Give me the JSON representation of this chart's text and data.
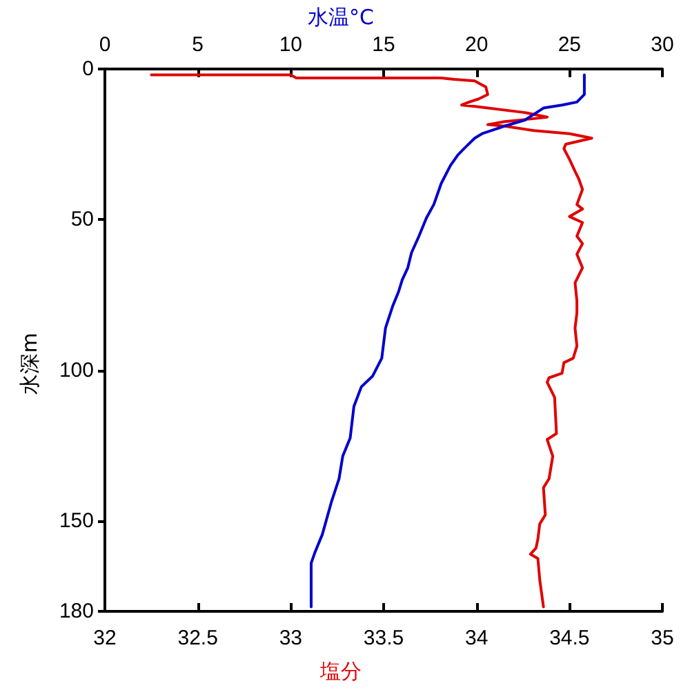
{
  "chart_data": {
    "type": "line",
    "xlabel": "塩分",
    "x2label": "水温°C",
    "ylabel": "水深m",
    "xlim": [
      32,
      35
    ],
    "xticks": [
      32,
      32.5,
      33,
      33.5,
      34,
      34.5,
      35
    ],
    "x2lim": [
      0,
      30
    ],
    "x2ticks": [
      0,
      5,
      10,
      15,
      20,
      25,
      30
    ],
    "ylim": [
      180,
      0
    ],
    "yticks": [
      0,
      50,
      100,
      150,
      180
    ],
    "grid": false,
    "marker": "none",
    "line_style": "solid",
    "series": [
      {
        "color": "#e00000",
        "x": [
          32.25,
          33.0,
          33.03,
          33.81,
          33.88,
          33.99,
          34.02,
          34.05,
          34.06,
          34.01,
          33.96,
          33.92,
          34.0,
          34.26,
          34.38,
          34.31,
          34.15,
          34.06,
          34.15,
          34.31,
          34.5,
          34.62,
          34.48,
          34.47,
          34.5,
          34.53,
          34.55,
          34.57,
          34.54,
          34.57,
          34.5,
          34.57,
          34.54,
          34.57,
          34.54,
          34.57,
          34.53,
          34.54,
          34.54,
          34.53,
          34.54,
          34.52,
          34.47,
          34.46,
          34.39,
          34.38,
          34.42,
          34.43,
          34.38,
          34.41,
          34.39,
          34.36,
          34.37,
          34.34,
          34.33,
          34.32,
          34.29,
          34.33,
          34.34,
          34.36
        ],
        "values": [
          2,
          2,
          3,
          3,
          3.5,
          4,
          5,
          6,
          8.5,
          10,
          11,
          12,
          12.5,
          14.5,
          16,
          16.5,
          17.5,
          18.5,
          19,
          20.5,
          21.5,
          23,
          25,
          26.5,
          30,
          34,
          36.5,
          40,
          45,
          46.5,
          49,
          51,
          55.5,
          58,
          61.5,
          66,
          71,
          77,
          81,
          86,
          92,
          96,
          97.5,
          101,
          102.5,
          104,
          109,
          121,
          123,
          128.5,
          136,
          139,
          148,
          151,
          156,
          159,
          161,
          162.5,
          169.5,
          178.5
        ]
      },
      {
        "color": "#0000cc",
        "axis": "x2",
        "x": [
          25.8,
          25.8,
          25.4,
          24.6,
          23.6,
          23.1,
          22.6,
          21.5,
          20.3,
          19.9,
          19.4,
          19.0,
          18.6,
          18.1,
          17.7,
          17.3,
          16.9,
          16.5,
          16.3,
          16.0,
          15.8,
          15.5,
          15.1,
          14.9,
          14.4,
          13.8,
          13.4,
          13.2,
          12.8,
          12.6,
          12.2,
          11.7,
          11.3,
          11.1,
          11.1
        ],
        "values": [
          2,
          8.5,
          11,
          12,
          13,
          15,
          17,
          19,
          21.5,
          23,
          26,
          28.5,
          32,
          38,
          45,
          49.5,
          55.5,
          61,
          66,
          70,
          74,
          78.5,
          86,
          96,
          102,
          105.5,
          112,
          122.5,
          128.5,
          136,
          143.5,
          154.5,
          160.5,
          164,
          178.5
        ]
      }
    ]
  }
}
